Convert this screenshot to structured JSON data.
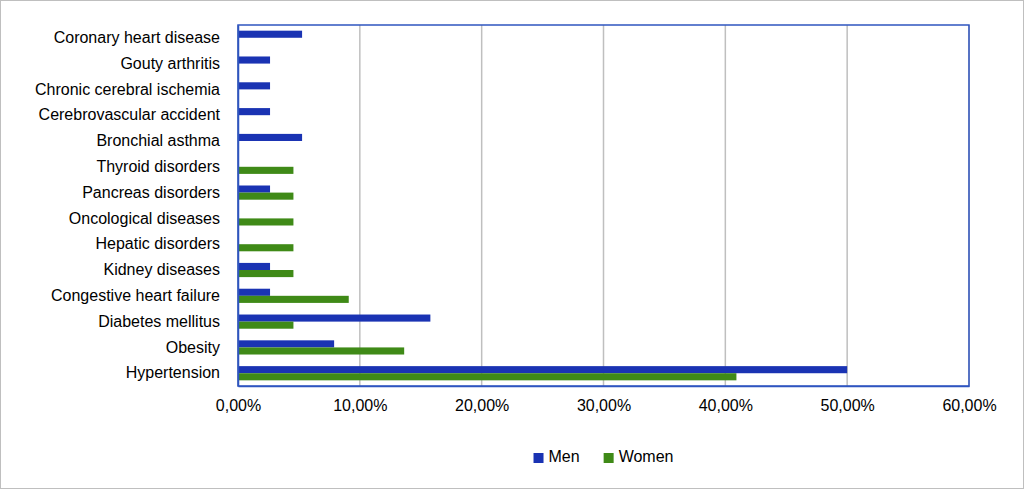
{
  "chart_data": {
    "type": "bar",
    "orientation": "horizontal",
    "categories": [
      "Coronary heart disease",
      "Gouty arthritis",
      "Chronic cerebral ischemia",
      "Cerebrovascular accident",
      "Bronchial asthma",
      "Thyroid disorders",
      "Pancreas disorders",
      "Oncological diseases",
      "Hepatic disorders",
      "Kidney diseases",
      "Congestive heart failure",
      "Diabetes mellitus",
      "Obesity",
      "Hypertension"
    ],
    "series": [
      {
        "name": "Men",
        "color": "#1a33b3",
        "values": [
          5.26,
          2.63,
          2.63,
          2.63,
          5.26,
          0,
          2.63,
          0,
          0,
          2.63,
          2.63,
          15.79,
          7.89,
          50.0
        ]
      },
      {
        "name": "Women",
        "color": "#3f8a17",
        "values": [
          0,
          0,
          0,
          0,
          0,
          4.55,
          4.55,
          4.55,
          4.55,
          4.55,
          9.09,
          4.55,
          13.64,
          40.91
        ]
      }
    ],
    "xlim": [
      0,
      60
    ],
    "xticks": [
      {
        "value": 0,
        "label": "0,00%"
      },
      {
        "value": 10,
        "label": "10,00%"
      },
      {
        "value": 20,
        "label": "20,00%"
      },
      {
        "value": 30,
        "label": "30,00%"
      },
      {
        "value": 40,
        "label": "40,00%"
      },
      {
        "value": 50,
        "label": "50,00%"
      },
      {
        "value": 60,
        "label": "60,00%"
      }
    ],
    "grid": true,
    "legend": "bottom"
  }
}
